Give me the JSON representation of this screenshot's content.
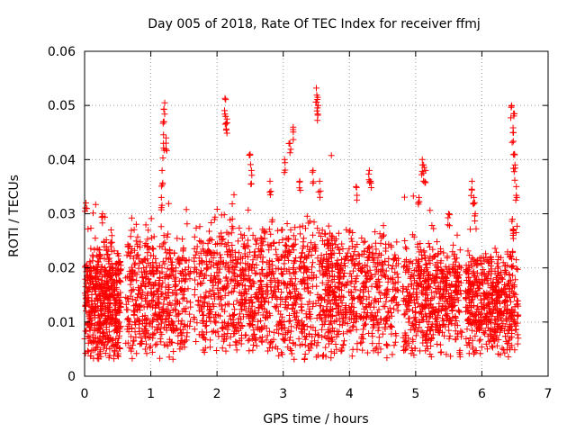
{
  "chart_data": {
    "type": "scatter",
    "title": "Day 005 of 2018, Rate Of TEC Index for receiver ffmj",
    "xlabel": "GPS time / hours",
    "ylabel": "ROTI / TECUs",
    "xlim": [
      0,
      7
    ],
    "ylim": [
      0,
      0.06
    ],
    "x_ticks": [
      "0",
      "1",
      "2",
      "3",
      "4",
      "5",
      "6",
      "7"
    ],
    "y_ticks": [
      "0",
      "0.01",
      "0.02",
      "0.03",
      "0.04",
      "0.05",
      "0.06"
    ],
    "grid": true,
    "marker": "+",
    "series": [
      {
        "name": "ROTI",
        "color": "#ff0000",
        "clusters": [
          {
            "x_range": [
              0.0,
              0.55
            ],
            "base_range": [
              0.005,
              0.022
            ],
            "spread": 0.012
          },
          {
            "x_range": [
              0.62,
              1.6
            ],
            "base_range": [
              0.006,
              0.024
            ],
            "spread": 0.011
          },
          {
            "x_range": [
              1.65,
              2.7
            ],
            "base_range": [
              0.007,
              0.025
            ],
            "spread": 0.012
          },
          {
            "x_range": [
              2.65,
              3.75
            ],
            "base_range": [
              0.005,
              0.026
            ],
            "spread": 0.013
          },
          {
            "x_range": [
              3.65,
              4.75
            ],
            "base_range": [
              0.006,
              0.024
            ],
            "spread": 0.012
          },
          {
            "x_range": [
              4.8,
              5.7
            ],
            "base_range": [
              0.006,
              0.022
            ],
            "spread": 0.011
          },
          {
            "x_range": [
              5.75,
              6.55
            ],
            "base_range": [
              0.006,
              0.021
            ],
            "spread": 0.011
          }
        ],
        "highlights": [
          {
            "x": 0.02,
            "y": 0.032
          },
          {
            "x": 0.27,
            "y": 0.03
          },
          {
            "x": 0.4,
            "y": 0.027
          },
          {
            "x": 1.17,
            "y": 0.038
          },
          {
            "x": 1.19,
            "y": 0.043
          },
          {
            "x": 1.2,
            "y": 0.047
          },
          {
            "x": 1.21,
            "y": 0.0505
          },
          {
            "x": 1.23,
            "y": 0.044
          },
          {
            "x": 1.16,
            "y": 0.033
          },
          {
            "x": 2.12,
            "y": 0.0513
          },
          {
            "x": 2.13,
            "y": 0.048
          },
          {
            "x": 2.15,
            "y": 0.0475
          },
          {
            "x": 2.5,
            "y": 0.041
          },
          {
            "x": 2.52,
            "y": 0.038
          },
          {
            "x": 2.8,
            "y": 0.036
          },
          {
            "x": 3.02,
            "y": 0.04
          },
          {
            "x": 3.1,
            "y": 0.043
          },
          {
            "x": 3.15,
            "y": 0.046
          },
          {
            "x": 3.25,
            "y": 0.036
          },
          {
            "x": 3.5,
            "y": 0.0532
          },
          {
            "x": 3.52,
            "y": 0.0515
          },
          {
            "x": 3.51,
            "y": 0.049
          },
          {
            "x": 3.45,
            "y": 0.038
          },
          {
            "x": 3.55,
            "y": 0.036
          },
          {
            "x": 4.1,
            "y": 0.035
          },
          {
            "x": 4.3,
            "y": 0.038
          },
          {
            "x": 4.32,
            "y": 0.036
          },
          {
            "x": 5.1,
            "y": 0.04
          },
          {
            "x": 5.12,
            "y": 0.039
          },
          {
            "x": 5.15,
            "y": 0.038
          },
          {
            "x": 5.05,
            "y": 0.033
          },
          {
            "x": 5.5,
            "y": 0.03
          },
          {
            "x": 5.85,
            "y": 0.036
          },
          {
            "x": 5.88,
            "y": 0.033
          },
          {
            "x": 5.9,
            "y": 0.03
          },
          {
            "x": 6.45,
            "y": 0.05
          },
          {
            "x": 6.48,
            "y": 0.0485
          },
          {
            "x": 6.47,
            "y": 0.045
          },
          {
            "x": 6.49,
            "y": 0.041
          },
          {
            "x": 6.5,
            "y": 0.039
          },
          {
            "x": 6.52,
            "y": 0.035
          },
          {
            "x": 6.46,
            "y": 0.029
          },
          {
            "x": 6.48,
            "y": 0.027
          }
        ]
      }
    ]
  }
}
